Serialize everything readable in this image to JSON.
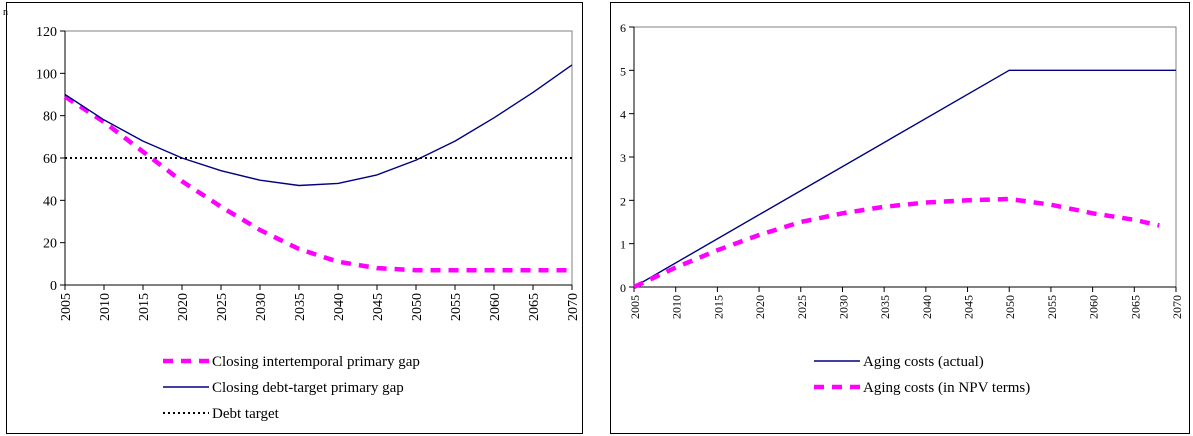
{
  "corner_mark": "n",
  "chart_data": [
    {
      "type": "line",
      "title": "",
      "xlabel": "",
      "ylabel": "",
      "ylim": [
        0,
        120
      ],
      "xlim": [
        2005,
        2070
      ],
      "yticks": [
        0,
        20,
        40,
        60,
        80,
        100,
        120
      ],
      "xticks": [
        2005,
        2010,
        2015,
        2020,
        2025,
        2030,
        2035,
        2040,
        2045,
        2050,
        2055,
        2060,
        2065,
        2070
      ],
      "grid": false,
      "legend": "bottom",
      "series": [
        {
          "name": "Closing intertemporal primary gap",
          "color": "#ff00ff",
          "style": "dashed-thick",
          "x": [
            2005,
            2010,
            2015,
            2020,
            2025,
            2030,
            2035,
            2040,
            2045,
            2050,
            2055,
            2060,
            2065,
            2070
          ],
          "y": [
            89,
            77,
            63,
            49,
            37,
            26,
            17,
            11,
            8,
            7,
            7,
            7,
            7,
            7
          ]
        },
        {
          "name": "Closing debt-target primary gap",
          "color": "#000080",
          "style": "solid",
          "x": [
            2005,
            2010,
            2015,
            2020,
            2025,
            2030,
            2035,
            2040,
            2045,
            2050,
            2055,
            2060,
            2065,
            2070
          ],
          "y": [
            90,
            78,
            68,
            60,
            54,
            49.5,
            47,
            48,
            52,
            59,
            68,
            79,
            91,
            104
          ]
        },
        {
          "name": "Debt target",
          "color": "#000000",
          "style": "dotted",
          "x": [
            2005,
            2070
          ],
          "y": [
            60,
            60
          ]
        }
      ]
    },
    {
      "type": "line",
      "title": "",
      "xlabel": "",
      "ylabel": "",
      "ylim": [
        0,
        6
      ],
      "xlim": [
        2005,
        2070
      ],
      "yticks": [
        0,
        1,
        2,
        3,
        4,
        5,
        6
      ],
      "xticks": [
        2005,
        2010,
        2015,
        2020,
        2025,
        2030,
        2035,
        2040,
        2045,
        2050,
        2055,
        2060,
        2065,
        2070
      ],
      "grid": false,
      "legend": "bottom",
      "series": [
        {
          "name": "Aging costs (actual)",
          "color": "#000080",
          "style": "solid",
          "x": [
            2005,
            2050,
            2070
          ],
          "y": [
            0,
            5,
            5
          ]
        },
        {
          "name": "Aging costs (in NPV terms)",
          "color": "#ff00ff",
          "style": "dashed-thick",
          "x": [
            2005,
            2010,
            2015,
            2020,
            2025,
            2030,
            2035,
            2040,
            2045,
            2050,
            2055,
            2060,
            2065,
            2068
          ],
          "y": [
            0,
            0.45,
            0.85,
            1.2,
            1.5,
            1.7,
            1.85,
            1.95,
            2.0,
            2.03,
            1.9,
            1.7,
            1.55,
            1.42
          ]
        }
      ]
    }
  ]
}
